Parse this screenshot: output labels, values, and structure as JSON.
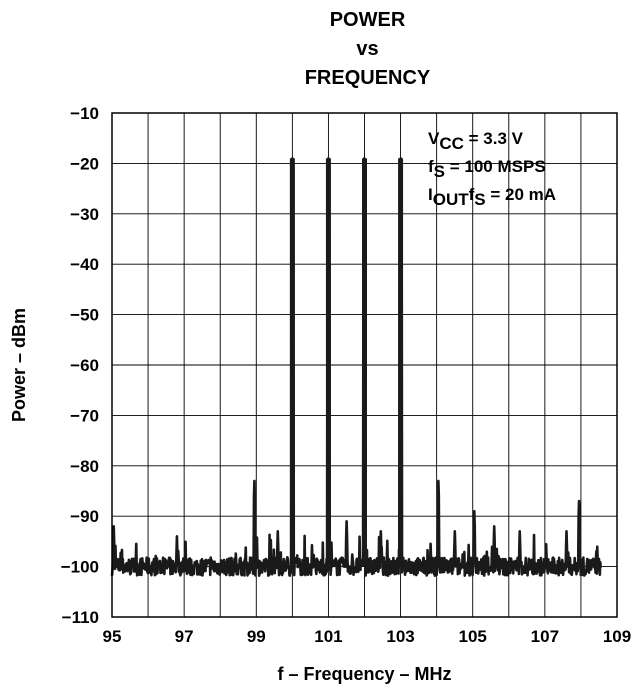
{
  "chart_data": {
    "type": "line",
    "title_lines": [
      "POWER",
      "vs",
      "FREQUENCY"
    ],
    "xlabel": "f – Frequency – MHz",
    "ylabel": "Power – dBm",
    "xlim": [
      95,
      109
    ],
    "ylim": [
      -110,
      -10
    ],
    "x_tick_labels": [
      "95",
      "97",
      "99",
      "101",
      "103",
      "105",
      "107",
      "109"
    ],
    "y_tick_labels": [
      "−10",
      "−20",
      "−30",
      "−40",
      "−50",
      "−60",
      "−70",
      "−80",
      "−90",
      "−100",
      "−110"
    ],
    "grid": true,
    "noise_floor_dbm": -100,
    "peaks": [
      {
        "x": 98.95,
        "y": -83
      },
      {
        "x": 100.0,
        "y": -19
      },
      {
        "x": 101.0,
        "y": -19
      },
      {
        "x": 102.0,
        "y": -19
      },
      {
        "x": 103.0,
        "y": -19
      },
      {
        "x": 101.5,
        "y": -91
      },
      {
        "x": 104.05,
        "y": -83
      },
      {
        "x": 105.05,
        "y": -89
      },
      {
        "x": 107.95,
        "y": -87
      },
      {
        "x": 95.05,
        "y": -92
      },
      {
        "x": 96.8,
        "y": -94
      },
      {
        "x": 99.6,
        "y": -93
      },
      {
        "x": 102.45,
        "y": -93
      },
      {
        "x": 104.5,
        "y": -93
      },
      {
        "x": 105.6,
        "y": -92
      },
      {
        "x": 106.3,
        "y": -93
      },
      {
        "x": 107.6,
        "y": -93
      }
    ],
    "annotations": {
      "line1_main": "V",
      "line1_sub": "CC",
      "line1_rest": " = 3.3 V",
      "line2_main": "f",
      "line2_sub": "S",
      "line2_rest": " = 100 MSPS",
      "line3_main": "I",
      "line3_sub": "OUT",
      "line3_mid": "f",
      "line3_sub2": "S",
      "line3_rest": " = 20 mA"
    },
    "line_color": "#1a1a1a"
  }
}
